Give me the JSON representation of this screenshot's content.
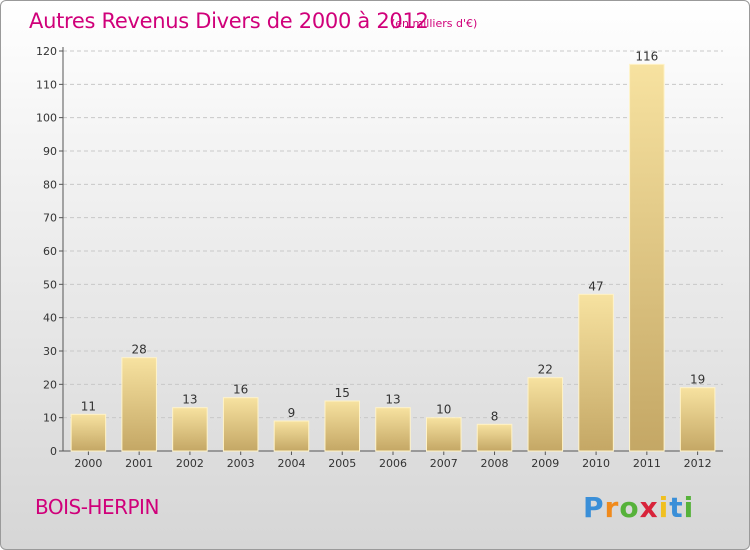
{
  "chart_data": {
    "type": "bar",
    "title": "Autres Revenus Divers de 2000 à 2012",
    "subtitle": "(en milliers d'€)",
    "categories": [
      "2000",
      "2001",
      "2002",
      "2003",
      "2004",
      "2005",
      "2006",
      "2007",
      "2008",
      "2009",
      "2010",
      "2011",
      "2012"
    ],
    "values": [
      11,
      28,
      13,
      16,
      9,
      15,
      13,
      10,
      8,
      22,
      47,
      116,
      19
    ],
    "ylim": [
      0,
      120
    ],
    "yticks": [
      0,
      10,
      20,
      30,
      40,
      50,
      60,
      70,
      80,
      90,
      100,
      110,
      120
    ],
    "grid": true,
    "bar_color": "#e8cf86"
  },
  "footer": {
    "location": "BOIS-HERPIN",
    "logo": {
      "letters": [
        "P",
        "r",
        "o",
        "x",
        "i",
        "t",
        "i"
      ],
      "colors": [
        "#3a8fd8",
        "#f08a1c",
        "#56b23a",
        "#d8233a",
        "#f0c020",
        "#3a8fd8",
        "#56b23a"
      ]
    }
  }
}
